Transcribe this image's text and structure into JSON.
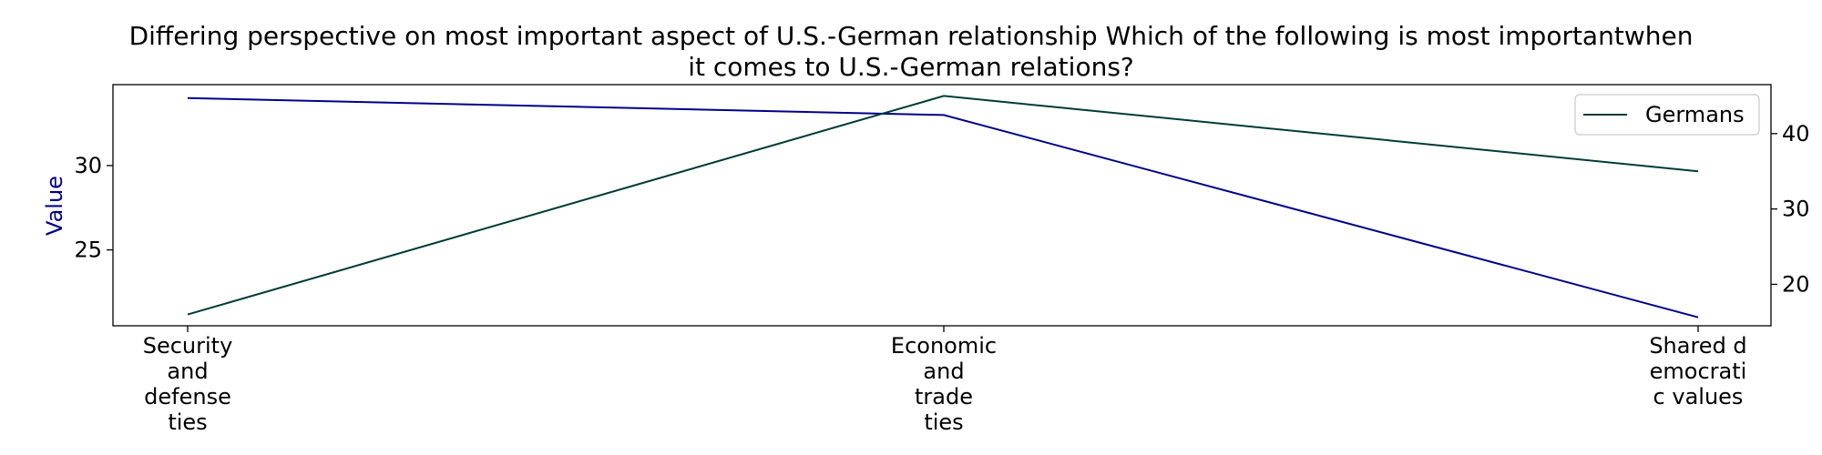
{
  "chart_data": {
    "type": "line",
    "title_lines": [
      "Differing perspective on most important aspect of U.S.-German relationship Which of the following is most importantwhen",
      "it comes to U.S.-German relations?"
    ],
    "categories": [
      "Security and defense ties",
      "Economic and trade ties",
      "Shared democratic values"
    ],
    "category_label_lines": [
      [
        "Security",
        "and",
        "defense",
        "ties"
      ],
      [
        "Economic",
        "and",
        "trade",
        "ties"
      ],
      [
        "Shared d",
        "emocrati",
        "c values"
      ]
    ],
    "ylabel": "Value",
    "left_axis": {
      "ylim": [
        20.5,
        34.8
      ],
      "ticks": [
        25,
        30
      ],
      "tick_labels": [
        "25",
        "30"
      ]
    },
    "right_axis": {
      "ylim": [
        14.5,
        46.5
      ],
      "ticks": [
        20,
        30,
        40
      ],
      "tick_labels": [
        "20",
        "30",
        "40"
      ]
    },
    "series": [
      {
        "axis": "left",
        "values": [
          34,
          33,
          21
        ],
        "color": "#00008b"
      },
      {
        "name": "Germans",
        "axis": "right",
        "values": [
          16,
          45,
          35
        ],
        "color": "#003b36"
      }
    ],
    "legend": {
      "position": "top-right",
      "entries": [
        "Germans"
      ]
    },
    "grid": false
  }
}
